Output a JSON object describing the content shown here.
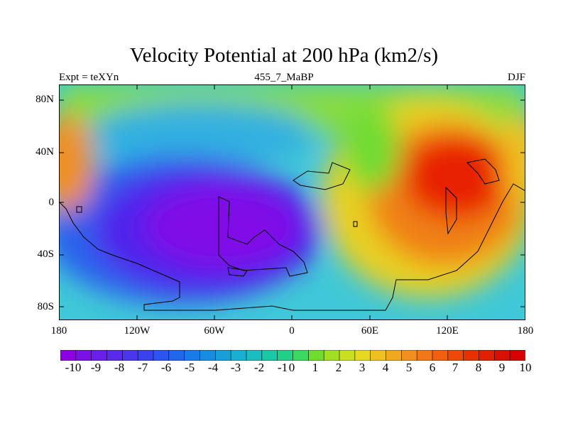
{
  "figure": {
    "title": "Velocity Potential at 200 hPa (km2/s)",
    "left_label": "Expt = teXYn",
    "center_label": "455_7_MaBP",
    "right_label": "DJF"
  },
  "axes": {
    "y_ticks": [
      "80N",
      "40N",
      "0",
      "40S",
      "80S"
    ],
    "x_ticks": [
      "180",
      "120W",
      "60W",
      "0",
      "60E",
      "120E",
      "180"
    ]
  },
  "colorbar": {
    "labels": [
      "-10",
      "-9",
      "-8",
      "-7",
      "-6",
      "-5",
      "-4",
      "-3",
      "-2",
      "-1",
      "0",
      "1",
      "2",
      "3",
      "4",
      "5",
      "6",
      "7",
      "8",
      "9",
      "10"
    ],
    "colors": [
      "#8c00e6",
      "#7a12e8",
      "#6a1fea",
      "#5a2aec",
      "#4a36ee",
      "#3a42f0",
      "#2a55ee",
      "#1f68ea",
      "#1a7ae6",
      "#1a8ce0",
      "#1a9ed8",
      "#1aaed0",
      "#1abec0",
      "#1ac8a8",
      "#20d088",
      "#3cd860",
      "#70dc30",
      "#a0e020",
      "#c8e020",
      "#e8d820",
      "#f0c020",
      "#f0a820",
      "#f09020",
      "#f07818",
      "#f06010",
      "#f04808",
      "#e83000",
      "#e02000",
      "#d81000",
      "#d80000"
    ],
    "min": -10,
    "max": 10
  },
  "chart_data": {
    "type": "heatmap",
    "title": "Velocity Potential at 200 hPa (km2/s)",
    "xlabel": "",
    "ylabel": "",
    "xlim": [
      -180,
      180
    ],
    "ylim": [
      -90,
      90
    ],
    "units": "km2/s",
    "value_range": [
      -10,
      10
    ],
    "centers": [
      {
        "lon": -40,
        "lat": -25,
        "value": -10.5,
        "name": "minimum"
      },
      {
        "lon": 125,
        "lat": 20,
        "value": 10.2,
        "name": "maximum"
      },
      {
        "lon": -175,
        "lat": 30,
        "value": 7.5,
        "name": "dateline maximum"
      }
    ]
  }
}
